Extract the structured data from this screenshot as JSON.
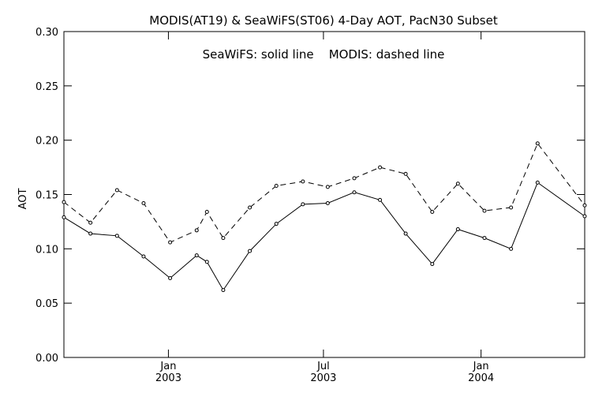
{
  "chart_data": {
    "type": "line",
    "title": "MODIS(AT19) & SeaWiFS(ST06) 4-Day AOT, PacN30 Subset",
    "annotation": "SeaWiFS: solid line    MODIS: dashed line",
    "ylabel": "AOT",
    "xlabel": "",
    "ylim": [
      0.0,
      0.3
    ],
    "xlim": [
      "2002-09-01",
      "2004-05-01"
    ],
    "grid": false,
    "y_ticks": [
      "0.00",
      "0.05",
      "0.10",
      "0.15",
      "0.20",
      "0.25",
      "0.30"
    ],
    "x_ticks": [
      {
        "date": "2003-01-01",
        "month": "Jan",
        "year": "2003"
      },
      {
        "date": "2003-07-01",
        "month": "Jul",
        "year": "2003"
      },
      {
        "date": "2004-01-01",
        "month": "Jan",
        "year": "2004"
      }
    ],
    "series": [
      {
        "name": "SeaWiFS",
        "style": "solid",
        "color": "#000000",
        "points": [
          {
            "x": "2002-09-01",
            "y": 0.129
          },
          {
            "x": "2002-10-02",
            "y": 0.114
          },
          {
            "x": "2002-11-02",
            "y": 0.112
          },
          {
            "x": "2002-12-03",
            "y": 0.093
          },
          {
            "x": "2003-01-03",
            "y": 0.073
          },
          {
            "x": "2003-02-03",
            "y": 0.094
          },
          {
            "x": "2003-02-15",
            "y": 0.088
          },
          {
            "x": "2003-03-06",
            "y": 0.062
          },
          {
            "x": "2003-04-06",
            "y": 0.098
          },
          {
            "x": "2003-05-07",
            "y": 0.123
          },
          {
            "x": "2003-06-07",
            "y": 0.141
          },
          {
            "x": "2003-07-06",
            "y": 0.142
          },
          {
            "x": "2003-08-06",
            "y": 0.152
          },
          {
            "x": "2003-09-05",
            "y": 0.145
          },
          {
            "x": "2003-10-05",
            "y": 0.114
          },
          {
            "x": "2003-11-05",
            "y": 0.086
          },
          {
            "x": "2003-12-05",
            "y": 0.118
          },
          {
            "x": "2004-01-05",
            "y": 0.11
          },
          {
            "x": "2004-02-05",
            "y": 0.1
          },
          {
            "x": "2004-03-07",
            "y": 0.161
          },
          {
            "x": "2004-05-01",
            "y": 0.13
          }
        ]
      },
      {
        "name": "MODIS",
        "style": "dashed",
        "color": "#000000",
        "points": [
          {
            "x": "2002-09-01",
            "y": 0.143
          },
          {
            "x": "2002-10-02",
            "y": 0.124
          },
          {
            "x": "2002-11-02",
            "y": 0.154
          },
          {
            "x": "2002-12-03",
            "y": 0.142
          },
          {
            "x": "2003-01-03",
            "y": 0.106
          },
          {
            "x": "2003-02-03",
            "y": 0.117
          },
          {
            "x": "2003-02-15",
            "y": 0.134
          },
          {
            "x": "2003-03-06",
            "y": 0.11
          },
          {
            "x": "2003-04-06",
            "y": 0.138
          },
          {
            "x": "2003-05-07",
            "y": 0.158
          },
          {
            "x": "2003-06-07",
            "y": 0.162
          },
          {
            "x": "2003-07-06",
            "y": 0.157
          },
          {
            "x": "2003-08-06",
            "y": 0.165
          },
          {
            "x": "2003-09-05",
            "y": 0.175
          },
          {
            "x": "2003-10-05",
            "y": 0.169
          },
          {
            "x": "2003-11-05",
            "y": 0.134
          },
          {
            "x": "2003-12-05",
            "y": 0.16
          },
          {
            "x": "2004-01-05",
            "y": 0.135
          },
          {
            "x": "2004-02-05",
            "y": 0.138
          },
          {
            "x": "2004-03-07",
            "y": 0.197
          },
          {
            "x": "2004-05-01",
            "y": 0.14
          }
        ]
      }
    ]
  }
}
